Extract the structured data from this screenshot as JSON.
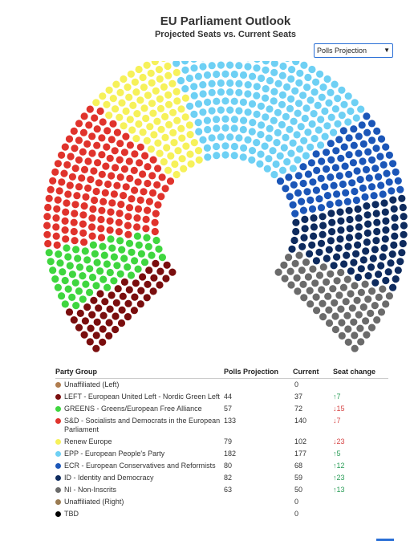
{
  "header": {
    "title": "EU Parliament Outlook",
    "subtitle": "Projected Seats vs. Current Seats"
  },
  "controls": {
    "view_select": "Polls Projection"
  },
  "table": {
    "headers": [
      "Party Group",
      "Polls Projection",
      "Current",
      "Seat change"
    ]
  },
  "chart_data": {
    "type": "hemicycle",
    "series": [
      {
        "name": "Unaffiliated (Left)",
        "color": "#b07d4f",
        "projection": "",
        "current": "0",
        "change": "",
        "dir": ""
      },
      {
        "name": "LEFT - European United Left - Nordic Green Left",
        "color": "#7a0e0e",
        "projection": "44",
        "current": "37",
        "change": "7",
        "dir": "up"
      },
      {
        "name": "GREENS - Greens/European Free Alliance",
        "color": "#3fd63f",
        "projection": "57",
        "current": "72",
        "change": "15",
        "dir": "down"
      },
      {
        "name": "S&D - Socialists and Democrats in the European Parliament",
        "color": "#e0332c",
        "projection": "133",
        "current": "140",
        "change": "7",
        "dir": "down"
      },
      {
        "name": "Renew Europe",
        "color": "#f6f15a",
        "projection": "79",
        "current": "102",
        "change": "23",
        "dir": "down"
      },
      {
        "name": "EPP - European People's Party",
        "color": "#6ed0f4",
        "projection": "182",
        "current": "177",
        "change": "5",
        "dir": "up"
      },
      {
        "name": "ECR - European Conservatives and Reformists",
        "color": "#1b56b8",
        "projection": "80",
        "current": "68",
        "change": "12",
        "dir": "up"
      },
      {
        "name": "ID - Identity and Democracy",
        "color": "#0e2b5e",
        "projection": "82",
        "current": "59",
        "change": "23",
        "dir": "up"
      },
      {
        "name": "NI - Non-Inscrits",
        "color": "#6b6b6b",
        "projection": "63",
        "current": "50",
        "change": "13",
        "dir": "up"
      },
      {
        "name": "Unaffiliated (Right)",
        "color": "#9a7b52",
        "projection": "",
        "current": "0",
        "change": "",
        "dir": ""
      },
      {
        "name": "TBD",
        "color": "#000000",
        "projection": "",
        "current": "0",
        "change": "",
        "dir": ""
      }
    ]
  }
}
